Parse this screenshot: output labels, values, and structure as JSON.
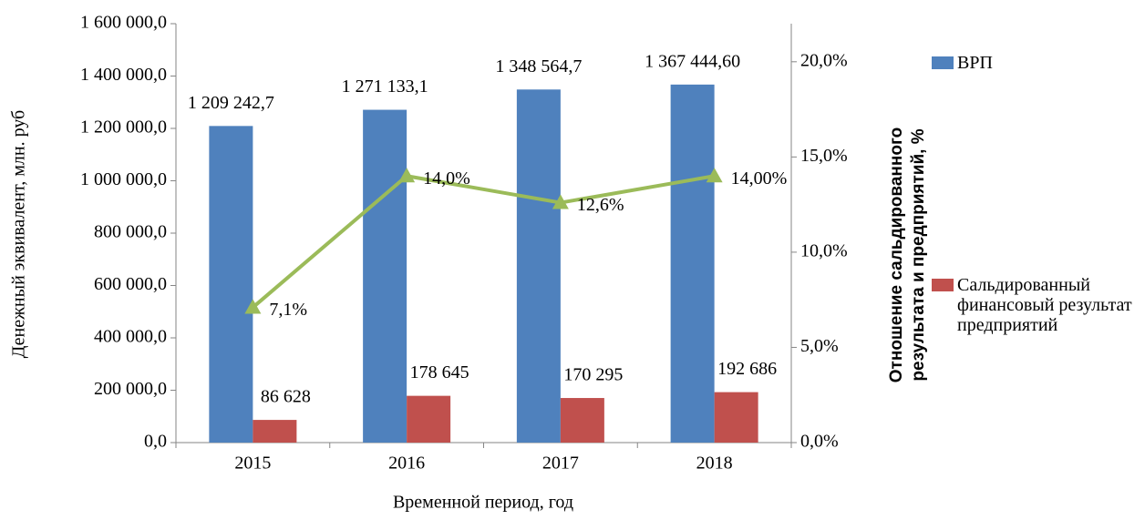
{
  "chart_data": {
    "type": "bar_line",
    "categories": [
      "2015",
      "2016",
      "2017",
      "2018"
    ],
    "xlabel": "Временной период, год",
    "ylabel": "Денежный эквивалент, млн. руб",
    "y2label": [
      "Отношение сальдированного",
      "результата и предприятий, %"
    ],
    "ylim": [
      0,
      1600000
    ],
    "yticks": [
      {
        "value": 0,
        "label": "0,0"
      },
      {
        "value": 200000,
        "label": "200 000,0"
      },
      {
        "value": 400000,
        "label": "400 000,0"
      },
      {
        "value": 600000,
        "label": "600 000,0"
      },
      {
        "value": 800000,
        "label": "800 000,0"
      },
      {
        "value": 1000000,
        "label": "1 000 000,0"
      },
      {
        "value": 1200000,
        "label": "1 200 000,0"
      },
      {
        "value": 1400000,
        "label": "1 400 000,0"
      },
      {
        "value": 1600000,
        "label": "1 600 000,0"
      }
    ],
    "y2lim": [
      0,
      22
    ],
    "y2ticks": [
      {
        "value": 0,
        "label": "0,0%"
      },
      {
        "value": 5,
        "label": "5,0%"
      },
      {
        "value": 10,
        "label": "10,0%"
      },
      {
        "value": 15,
        "label": "15,0%"
      },
      {
        "value": 20,
        "label": "20,0%"
      }
    ],
    "series": [
      {
        "name": "ВРП",
        "type": "bar",
        "color": "#4f81bd",
        "values": [
          1209242.7,
          1271133.1,
          1348564.7,
          1367444.6
        ],
        "value_labels": [
          "1 209 242,7",
          "1 271 133,1",
          "1 348 564,7",
          "1 367 444,60"
        ]
      },
      {
        "name": "Сальдированный финансовый результат предприятий",
        "type": "bar",
        "color": "#c0504d",
        "values": [
          86628,
          178645,
          170295,
          192686
        ],
        "value_labels": [
          "86 628",
          "178 645",
          "170 295",
          "192 686"
        ]
      },
      {
        "type": "line",
        "axis": "y2",
        "color": "#9bbb59",
        "values": [
          7.1,
          14.0,
          12.6,
          14.0
        ],
        "value_labels": [
          "7,1%",
          "14,0%",
          "12,6%",
          "14,00%"
        ]
      }
    ]
  }
}
